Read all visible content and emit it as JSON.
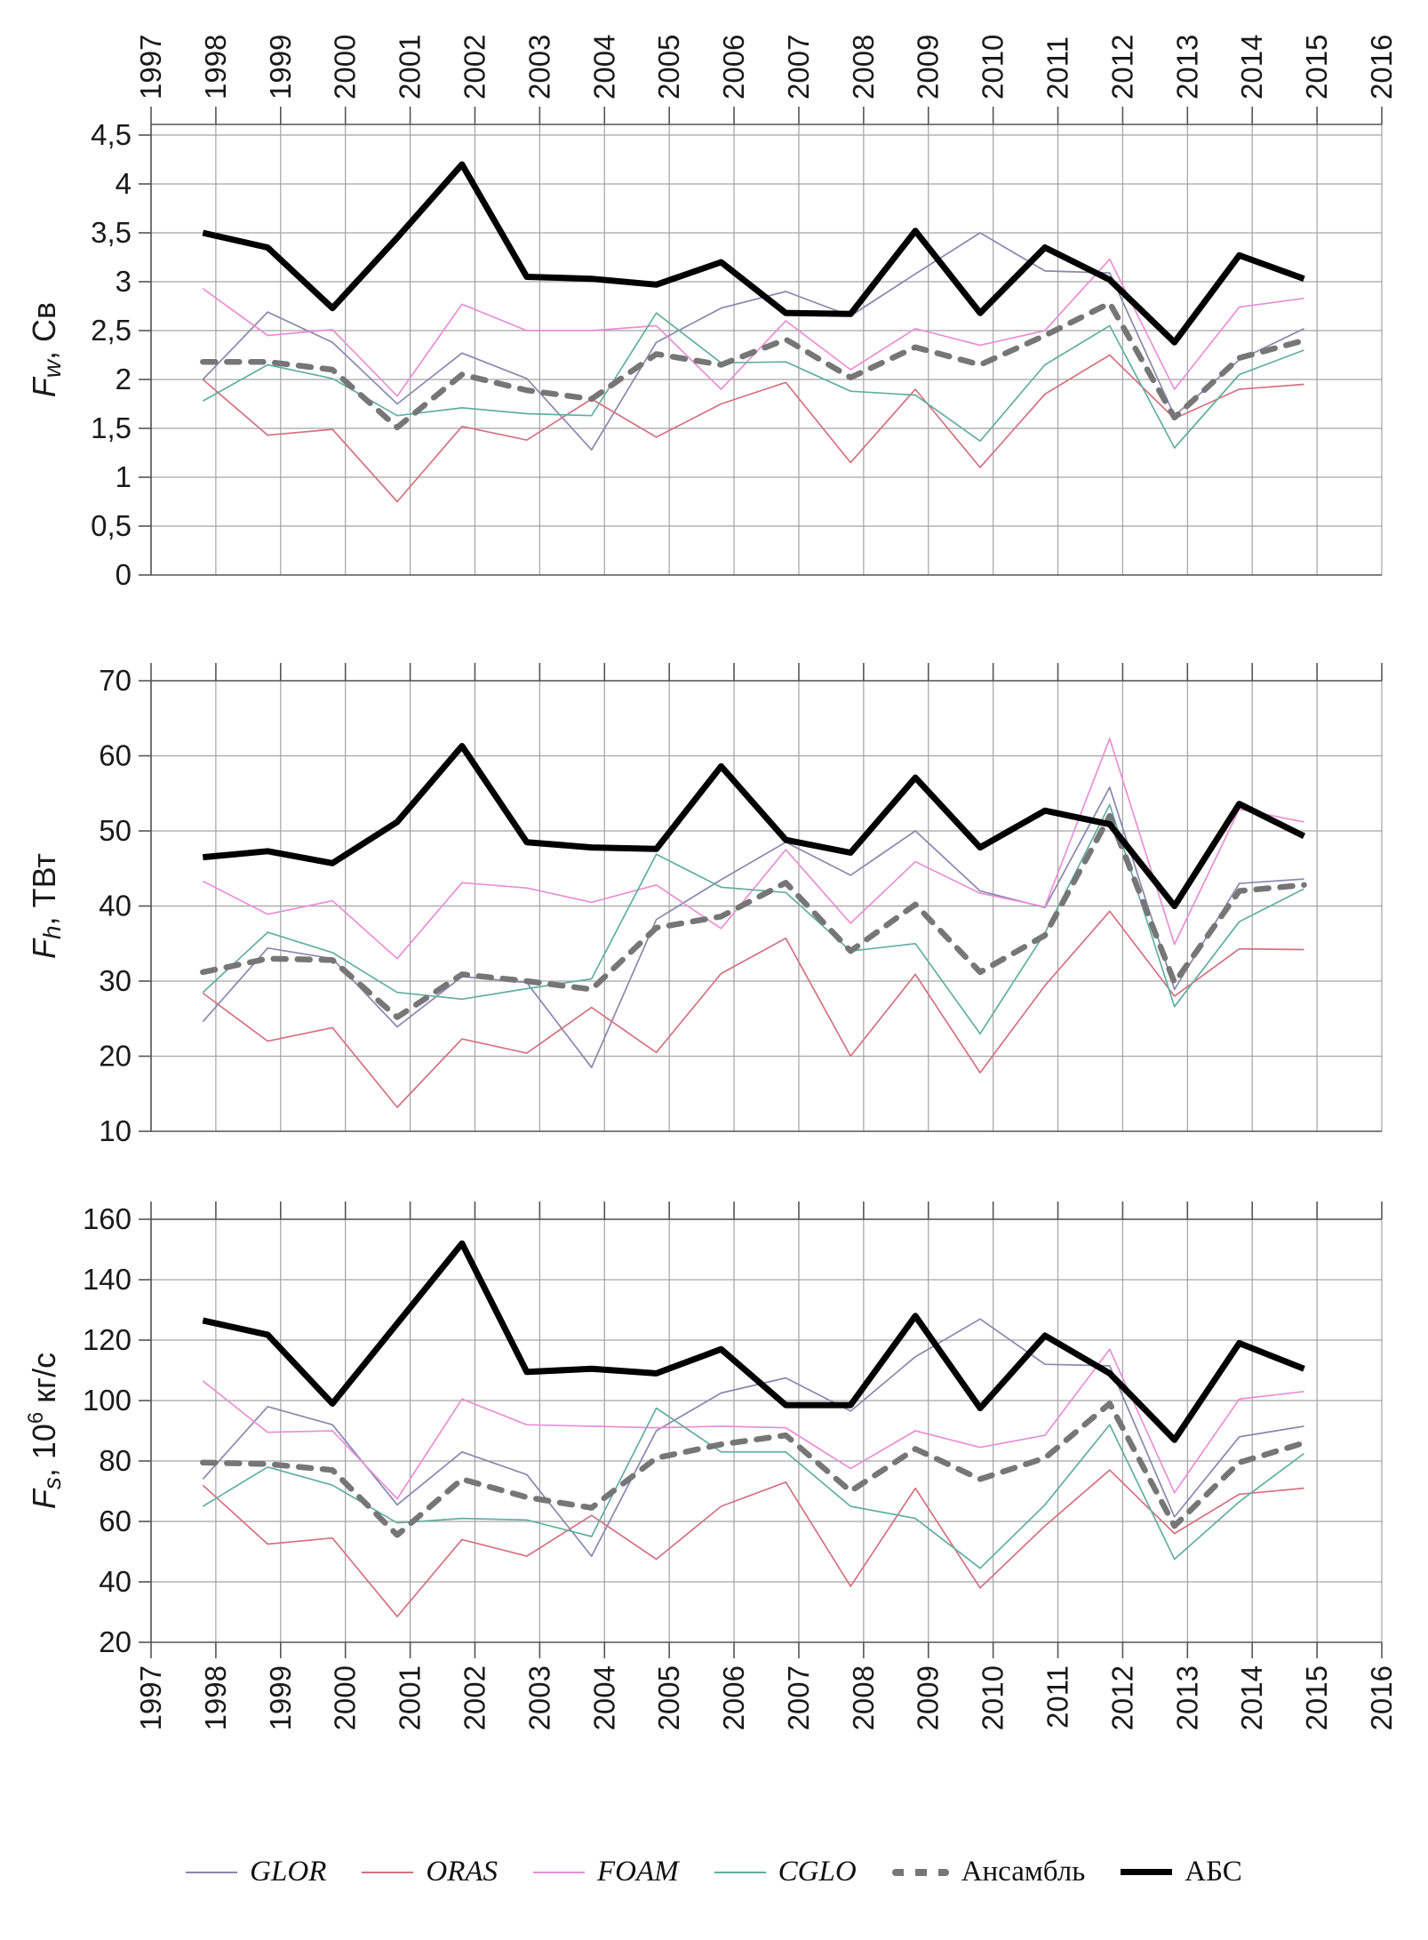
{
  "figure": {
    "x_axis_years": [
      1997,
      1998,
      1999,
      2000,
      2001,
      2002,
      2003,
      2004,
      2005,
      2006,
      2007,
      2008,
      2009,
      2010,
      2011,
      2012,
      2013,
      2014,
      2015,
      2016
    ],
    "series_years": [
      1998,
      1999,
      2000,
      2001,
      2002,
      2003,
      2004,
      2005,
      2006,
      2007,
      2008,
      2009,
      2010,
      2011,
      2012,
      2013,
      2014,
      2015
    ],
    "colors": {
      "GLOR": "#8888b0",
      "ORAS": "#d4727f",
      "FOAM": "#e98fd6",
      "CGLO": "#62aea0",
      "ensemble": "#767676",
      "abs": "#000000",
      "grid": "#a3a3a3",
      "axis": "#555555",
      "text": "#1a1a1a"
    }
  },
  "legend": {
    "items": [
      {
        "label": "GLOR",
        "key": "GLOR",
        "color": "#8888b0",
        "style": "thin",
        "model": true
      },
      {
        "label": "ORAS",
        "key": "ORAS",
        "color": "#d4727f",
        "style": "thin",
        "model": true
      },
      {
        "label": "FOAM",
        "key": "FOAM",
        "color": "#e98fd6",
        "style": "thin",
        "model": true
      },
      {
        "label": "CGLO",
        "key": "CGLO",
        "color": "#62aea0",
        "style": "thin",
        "model": true
      },
      {
        "label": "Ансамбль",
        "key": "ensemble",
        "color": "#767676",
        "style": "dashed",
        "model": false
      },
      {
        "label": "АБС",
        "key": "abs",
        "color": "#000000",
        "style": "thick",
        "model": false
      }
    ]
  },
  "chart_data": [
    {
      "type": "line",
      "panel": "top",
      "ylabel_text": "Fw, Св",
      "ylabel_parts": [
        {
          "text": "F",
          "style": "italic"
        },
        {
          "text": "w",
          "style": "sub"
        },
        {
          "text": ", Св",
          "style": "normal"
        }
      ],
      "ylim": [
        0,
        4.5
      ],
      "ytick_step": 0.5,
      "decimal_comma": true,
      "grid": true,
      "x_ticks": [
        1997,
        1998,
        1999,
        2000,
        2001,
        2002,
        2003,
        2004,
        2005,
        2006,
        2007,
        2008,
        2009,
        2010,
        2011,
        2012,
        2013,
        2014,
        2015,
        2016
      ],
      "x": [
        1998,
        1999,
        2000,
        2001,
        2002,
        2003,
        2004,
        2005,
        2006,
        2007,
        2008,
        2009,
        2010,
        2011,
        2012,
        2013,
        2014,
        2015
      ],
      "series": [
        {
          "name": "GLOR",
          "style": "thin",
          "values": [
            2.0,
            2.69,
            2.38,
            1.75,
            2.27,
            2.01,
            1.28,
            2.38,
            2.73,
            2.9,
            2.65,
            3.08,
            3.5,
            3.11,
            3.09,
            1.63,
            2.2,
            2.52
          ]
        },
        {
          "name": "ORAS",
          "style": "thin",
          "values": [
            2.0,
            1.43,
            1.49,
            0.75,
            1.52,
            1.38,
            1.8,
            1.41,
            1.75,
            1.97,
            1.15,
            1.9,
            1.1,
            1.85,
            2.25,
            1.6,
            1.9,
            1.95
          ]
        },
        {
          "name": "FOAM",
          "style": "thin",
          "values": [
            2.93,
            2.45,
            2.51,
            1.83,
            2.77,
            2.5,
            2.5,
            2.55,
            1.9,
            2.6,
            2.1,
            2.52,
            2.35,
            2.5,
            3.23,
            1.9,
            2.74,
            2.83
          ]
        },
        {
          "name": "CGLO",
          "style": "thin",
          "values": [
            1.78,
            2.15,
            2.01,
            1.63,
            1.71,
            1.65,
            1.63,
            2.68,
            2.17,
            2.18,
            1.88,
            1.84,
            1.37,
            2.15,
            2.55,
            1.3,
            2.05,
            2.3
          ]
        },
        {
          "name": "Ансамбль",
          "style": "dashed",
          "values": [
            2.18,
            2.18,
            2.1,
            1.51,
            2.05,
            1.89,
            1.8,
            2.26,
            2.15,
            2.41,
            2.02,
            2.33,
            2.15,
            2.45,
            2.78,
            1.61,
            2.22,
            2.4
          ]
        },
        {
          "name": "АБС",
          "style": "thick",
          "values": [
            3.5,
            3.35,
            2.73,
            3.45,
            4.2,
            3.05,
            3.03,
            2.97,
            3.2,
            2.68,
            2.67,
            3.52,
            2.68,
            3.35,
            3.02,
            2.38,
            3.27,
            3.03
          ]
        }
      ]
    },
    {
      "type": "line",
      "panel": "middle",
      "ylabel_text": "Fh, ТВт",
      "ylabel_parts": [
        {
          "text": "F",
          "style": "italic"
        },
        {
          "text": "h",
          "style": "sub"
        },
        {
          "text": ", ТВт",
          "style": "normal"
        }
      ],
      "ylim": [
        10,
        70
      ],
      "ytick_step": 10,
      "decimal_comma": false,
      "grid": true,
      "x_ticks": [
        1997,
        1998,
        1999,
        2000,
        2001,
        2002,
        2003,
        2004,
        2005,
        2006,
        2007,
        2008,
        2009,
        2010,
        2011,
        2012,
        2013,
        2014,
        2015,
        2016
      ],
      "x": [
        1998,
        1999,
        2000,
        2001,
        2002,
        2003,
        2004,
        2005,
        2006,
        2007,
        2008,
        2009,
        2010,
        2011,
        2012,
        2013,
        2014,
        2015
      ],
      "series": [
        {
          "name": "GLOR",
          "style": "thin",
          "values": [
            24.6,
            34.4,
            33.0,
            23.9,
            30.6,
            29.8,
            18.5,
            38.2,
            43.5,
            48.5,
            44.1,
            50.0,
            42.0,
            39.8,
            55.8,
            28.9,
            43.0,
            43.6
          ]
        },
        {
          "name": "ORAS",
          "style": "thin",
          "values": [
            28.4,
            22.0,
            23.8,
            13.2,
            22.3,
            20.4,
            26.5,
            20.5,
            31.0,
            35.7,
            20.0,
            30.9,
            17.8,
            29.4,
            39.3,
            28.0,
            34.3,
            34.2
          ]
        },
        {
          "name": "FOAM",
          "style": "thin",
          "values": [
            43.3,
            38.9,
            40.7,
            33.0,
            43.1,
            42.4,
            40.5,
            42.8,
            37.0,
            47.5,
            37.7,
            45.9,
            41.7,
            39.9,
            62.3,
            34.9,
            52.9,
            51.2
          ]
        },
        {
          "name": "CGLO",
          "style": "thin",
          "values": [
            28.5,
            36.5,
            33.8,
            28.5,
            27.6,
            29.0,
            30.3,
            46.9,
            42.5,
            41.8,
            34.0,
            35.0,
            23.0,
            36.4,
            53.5,
            26.6,
            37.9,
            42.3
          ]
        },
        {
          "name": "Ансамбль",
          "style": "dashed",
          "values": [
            31.2,
            33.0,
            32.8,
            25.2,
            30.9,
            30.0,
            28.9,
            37.1,
            38.6,
            43.1,
            34.0,
            40.2,
            31.2,
            36.1,
            52.0,
            29.8,
            42.0,
            42.8
          ]
        },
        {
          "name": "АБС",
          "style": "thick",
          "values": [
            46.5,
            47.3,
            45.7,
            51.2,
            61.3,
            48.5,
            47.8,
            47.6,
            58.6,
            48.8,
            47.1,
            57.1,
            47.8,
            52.7,
            50.9,
            40.0,
            53.6,
            49.3
          ]
        }
      ]
    },
    {
      "type": "line",
      "panel": "bottom",
      "ylabel_text": "Fs, 10⁶ кг/с",
      "ylabel_parts": [
        {
          "text": "F",
          "style": "italic"
        },
        {
          "text": "s",
          "style": "sub"
        },
        {
          "text": ", 10",
          "style": "normal"
        },
        {
          "text": "6",
          "style": "sup"
        },
        {
          "text": " кг/с",
          "style": "normal"
        }
      ],
      "ylim": [
        20,
        160
      ],
      "ytick_step": 20,
      "decimal_comma": false,
      "grid": true,
      "x_ticks": [
        1997,
        1998,
        1999,
        2000,
        2001,
        2002,
        2003,
        2004,
        2005,
        2006,
        2007,
        2008,
        2009,
        2010,
        2011,
        2012,
        2013,
        2014,
        2015,
        2016
      ],
      "x": [
        1998,
        1999,
        2000,
        2001,
        2002,
        2003,
        2004,
        2005,
        2006,
        2007,
        2008,
        2009,
        2010,
        2011,
        2012,
        2013,
        2014,
        2015
      ],
      "series": [
        {
          "name": "GLOR",
          "style": "thin",
          "values": [
            74.0,
            98.0,
            92.0,
            65.5,
            83.0,
            75.5,
            48.5,
            90.0,
            102.5,
            107.5,
            96.5,
            114.5,
            127.0,
            112.0,
            111.5,
            61.5,
            88.0,
            91.5
          ]
        },
        {
          "name": "ORAS",
          "style": "thin",
          "values": [
            72.0,
            52.5,
            54.5,
            28.5,
            54.0,
            48.5,
            62.0,
            47.5,
            65.0,
            73.0,
            38.5,
            71.0,
            38.0,
            58.5,
            77.0,
            56.0,
            69.0,
            71.0
          ]
        },
        {
          "name": "FOAM",
          "style": "thin",
          "values": [
            106.5,
            89.5,
            90.0,
            67.5,
            100.5,
            92.0,
            91.5,
            91.0,
            91.5,
            91.0,
            77.5,
            90.0,
            84.5,
            88.5,
            117.0,
            69.5,
            100.5,
            103.0
          ]
        },
        {
          "name": "CGLO",
          "style": "thin",
          "values": [
            65.0,
            78.0,
            72.0,
            59.5,
            61.0,
            60.5,
            55.0,
            97.5,
            83.0,
            83.0,
            65.0,
            61.0,
            44.5,
            65.5,
            92.0,
            47.5,
            66.5,
            82.5
          ]
        },
        {
          "name": "Ансамбль",
          "style": "dashed",
          "values": [
            79.5,
            79.0,
            77.0,
            55.5,
            74.0,
            68.0,
            64.5,
            81.0,
            85.5,
            88.5,
            70.0,
            84.0,
            74.0,
            81.0,
            99.0,
            58.5,
            79.5,
            86.0
          ]
        },
        {
          "name": "АБС",
          "style": "thick",
          "values": [
            126.5,
            121.8,
            99.0,
            125.5,
            152.0,
            109.5,
            110.5,
            109.0,
            117.0,
            98.5,
            98.5,
            128.0,
            97.5,
            121.5,
            109.0,
            87.0,
            119.0,
            110.5
          ]
        }
      ]
    }
  ]
}
